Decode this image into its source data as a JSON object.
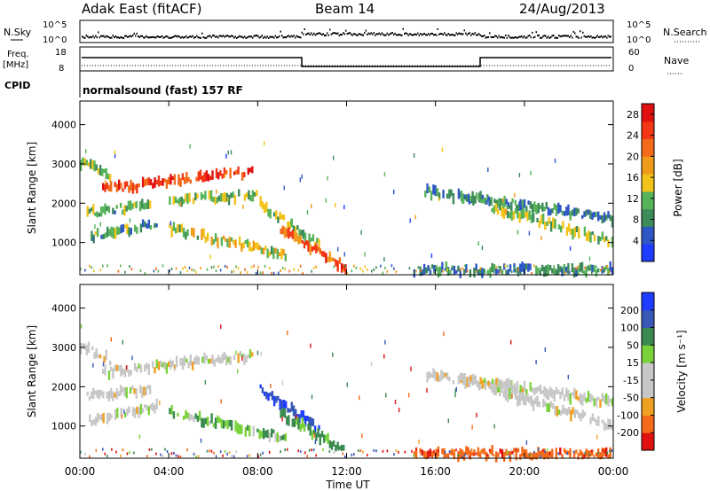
{
  "header": {
    "station": "Adak East (fitACF)",
    "beam": "Beam 14",
    "date": "24/Aug/2013"
  },
  "aux_labels": {
    "nsky": "N.Sky",
    "nsearch": "N.Search",
    "freq_top": "Freq.",
    "freq_unit": "[MHz]",
    "cpid": "CPID",
    "nave": "Nave",
    "cpid_text": "normalsound (fast) 157 RF",
    "nsky_ticks": [
      "10^5",
      "10^0"
    ],
    "freq_ticks": [
      "18",
      "8"
    ],
    "nave_ticks": [
      "60",
      "0"
    ]
  },
  "colors": {
    "power": [
      "#1e3cff",
      "#2e57c4",
      "#3d8a5a",
      "#57b35a",
      "#f2c318",
      "#f09a1a",
      "#f36a1a",
      "#f23616",
      "#e01010"
    ],
    "velocity": [
      "#e01010",
      "#f36a1a",
      "#f0a020",
      "#c7c7c7",
      "#c7c7c7",
      "#7ad23a",
      "#3a8a50",
      "#3858b8",
      "#1e3cff"
    ]
  },
  "chart_data": [
    {
      "type": "heatmap",
      "name": "power",
      "xlabel": "Time UT",
      "ylabel": "Slant Range [km]",
      "x_ticks": [
        "00:00",
        "04:00",
        "08:00",
        "12:00",
        "16:00",
        "20:00",
        "00:00"
      ],
      "x_range_hours": [
        0,
        24
      ],
      "y_ticks": [
        1000,
        2000,
        3000,
        4000
      ],
      "ylim": [
        180,
        4600
      ],
      "colorbar": {
        "label": "Power [dB]",
        "ticks": [
          4,
          8,
          12,
          16,
          20,
          24,
          28
        ],
        "range": [
          0,
          30
        ]
      },
      "bands": [
        {
          "t": [
            0.0,
            1.4
          ],
          "r_start": 3050,
          "r_end": 2650,
          "level": 12
        },
        {
          "t": [
            1.0,
            7.8
          ],
          "r_start": 2350,
          "r_end": 2800,
          "level": 26
        },
        {
          "t": [
            0.3,
            3.2
          ],
          "r_start": 1750,
          "r_end": 1950,
          "level": 10
        },
        {
          "t": [
            4.0,
            8.0
          ],
          "r_start": 2100,
          "r_end": 2200,
          "level": 11
        },
        {
          "t": [
            0.4,
            3.5
          ],
          "r_start": 1150,
          "r_end": 1500,
          "level": 9
        },
        {
          "t": [
            4.0,
            9.3
          ],
          "r_start": 1350,
          "r_end": 700,
          "level": 14
        },
        {
          "t": [
            8.0,
            10.8
          ],
          "r_start": 2000,
          "r_end": 900,
          "level": 12
        },
        {
          "t": [
            9.0,
            12.0
          ],
          "r_start": 1300,
          "r_end": 350,
          "level": 24
        },
        {
          "t": [
            15.0,
            24.0
          ],
          "r_start": 300,
          "r_end": 300,
          "level": 7
        },
        {
          "t": [
            15.5,
            20.0
          ],
          "r_start": 2300,
          "r_end": 1900,
          "level": 8
        },
        {
          "t": [
            17.0,
            24.0
          ],
          "r_start": 2200,
          "r_end": 1600,
          "level": 7
        },
        {
          "t": [
            18.5,
            24.0
          ],
          "r_start": 1900,
          "r_end": 1000,
          "level": 12
        }
      ]
    },
    {
      "type": "heatmap",
      "name": "velocity",
      "xlabel": "Time UT",
      "ylabel": "Slant Range [km]",
      "x_ticks": [
        "00:00",
        "04:00",
        "08:00",
        "12:00",
        "16:00",
        "20:00",
        "00:00"
      ],
      "x_range_hours": [
        0,
        24
      ],
      "y_ticks": [
        1000,
        2000,
        3000,
        4000
      ],
      "ylim": [
        180,
        4600
      ],
      "colorbar": {
        "label": "Velocity [m s⁻¹]",
        "ticks": [
          200,
          100,
          50,
          15,
          -15,
          -50,
          -100,
          -200
        ]
      },
      "bands": [
        {
          "t": [
            0.0,
            1.4
          ],
          "r_start": 3050,
          "r_end": 2650,
          "v": 0
        },
        {
          "t": [
            1.0,
            7.8
          ],
          "r_start": 2350,
          "r_end": 2800,
          "v": 0
        },
        {
          "t": [
            0.3,
            3.2
          ],
          "r_start": 1750,
          "r_end": 1950,
          "v": 0
        },
        {
          "t": [
            0.4,
            3.5
          ],
          "r_start": 1150,
          "r_end": 1500,
          "v": 0
        },
        {
          "t": [
            4.0,
            9.3
          ],
          "r_start": 1350,
          "r_end": 700,
          "v": 30
        },
        {
          "t": [
            8.0,
            10.8
          ],
          "r_start": 2000,
          "r_end": 900,
          "v": 150
        },
        {
          "t": [
            9.0,
            12.0
          ],
          "r_start": 1300,
          "r_end": 350,
          "v": 40
        },
        {
          "t": [
            15.0,
            24.0
          ],
          "r_start": 300,
          "r_end": 300,
          "v": -60
        },
        {
          "t": [
            15.5,
            20.0
          ],
          "r_start": 2300,
          "r_end": 1900,
          "v": 0
        },
        {
          "t": [
            17.0,
            24.0
          ],
          "r_start": 2200,
          "r_end": 1600,
          "v": 0
        },
        {
          "t": [
            18.5,
            24.0
          ],
          "r_start": 1900,
          "r_end": 1000,
          "v": 0
        }
      ]
    }
  ]
}
